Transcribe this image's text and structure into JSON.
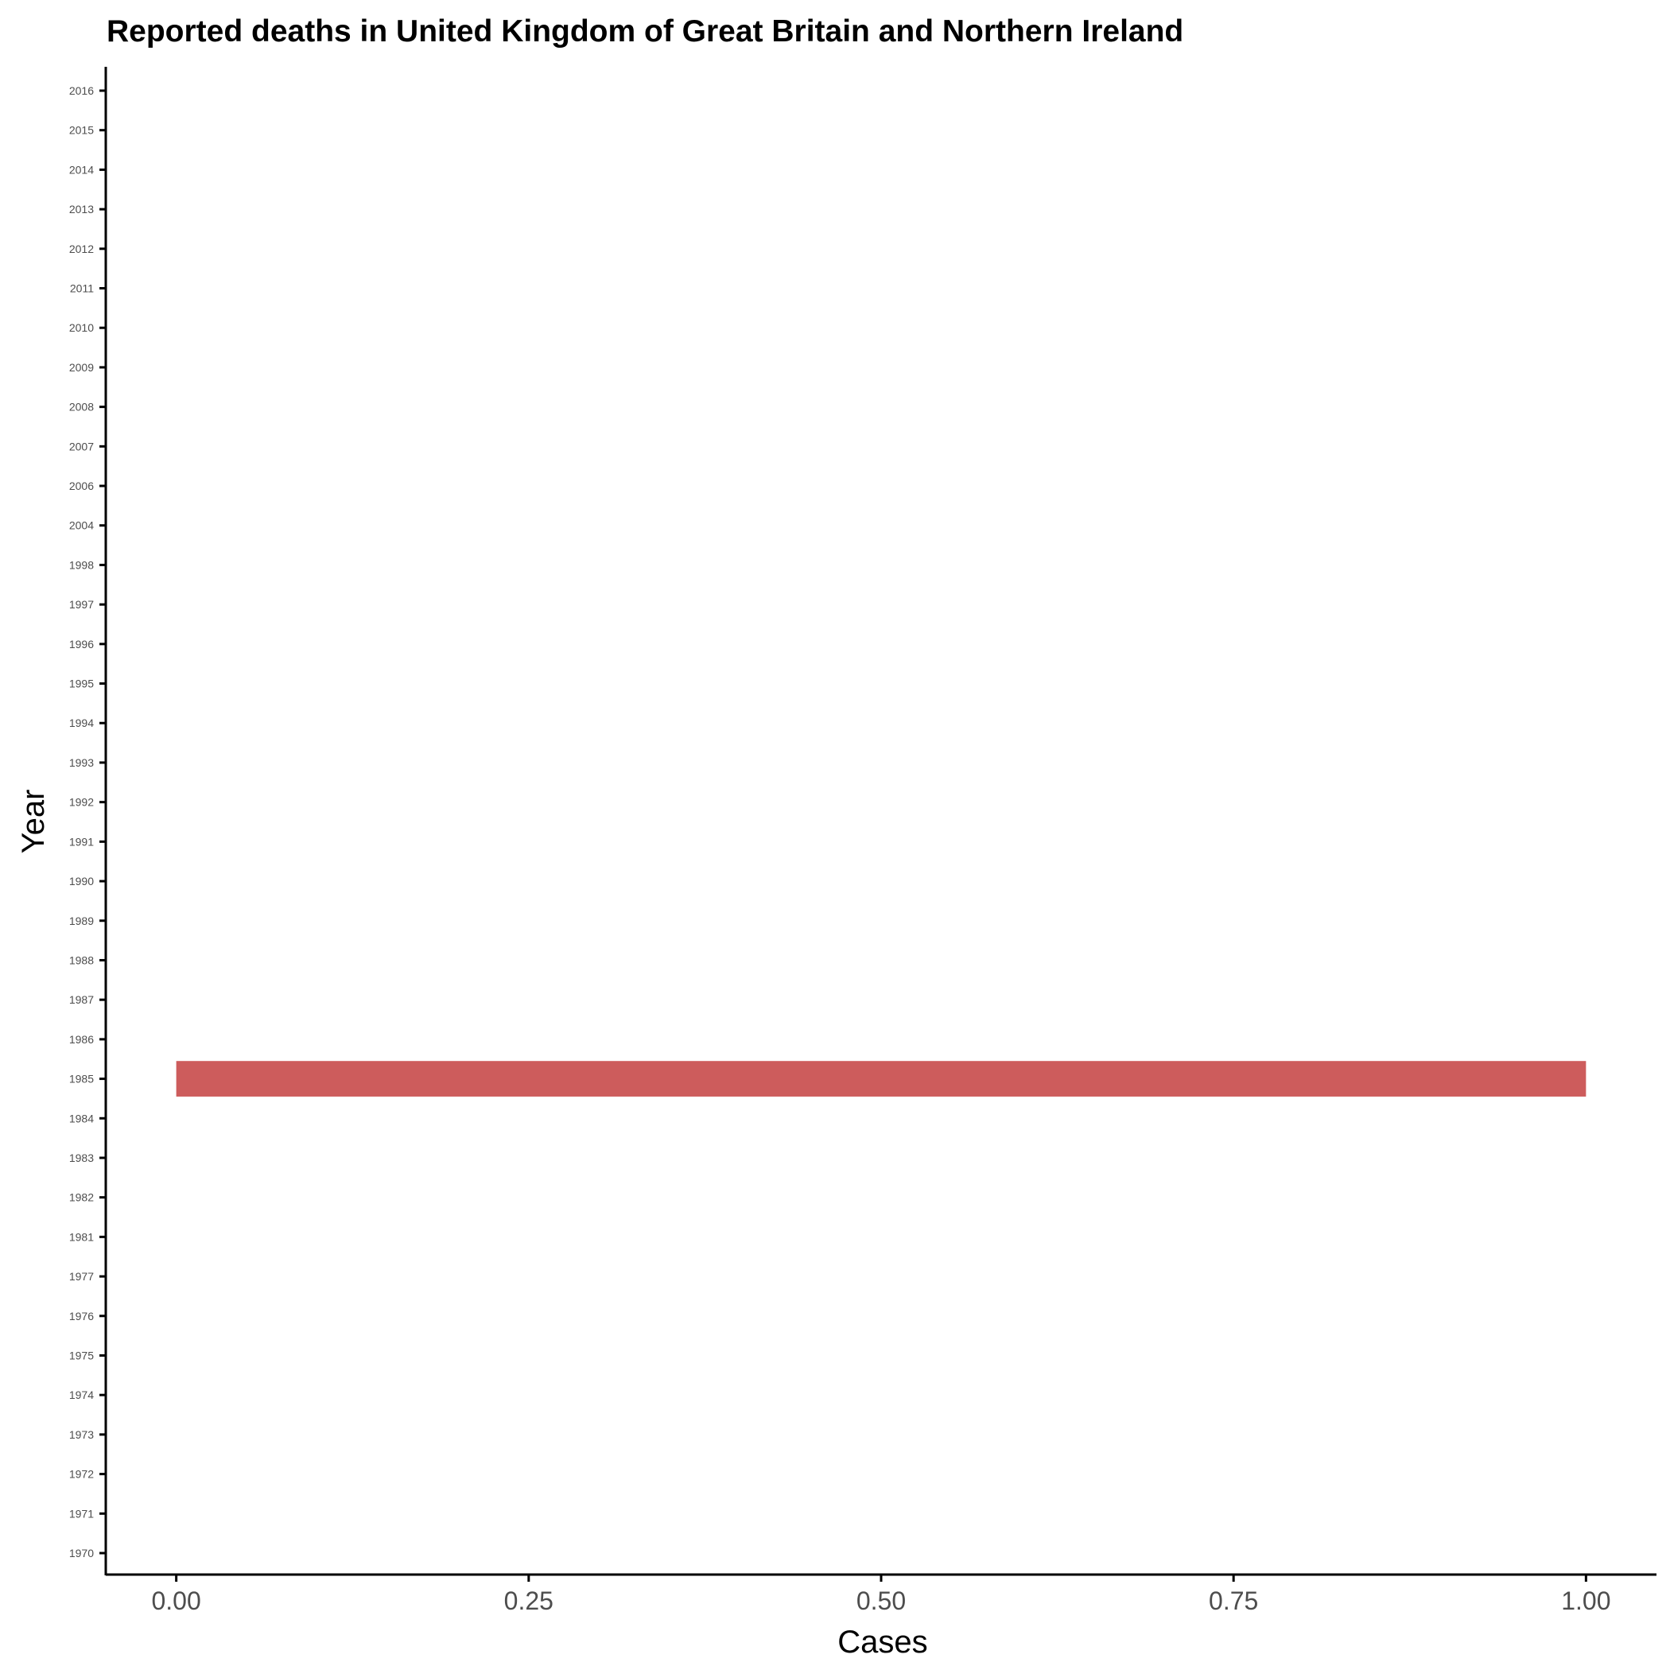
{
  "chart_data": {
    "type": "bar",
    "orientation": "horizontal",
    "title": "Reported deaths in United Kingdom of Great Britain and Northern Ireland",
    "xlabel": "Cases",
    "ylabel": "Year",
    "categories": [
      "1970",
      "1971",
      "1972",
      "1973",
      "1974",
      "1975",
      "1976",
      "1977",
      "1981",
      "1982",
      "1983",
      "1984",
      "1985",
      "1986",
      "1987",
      "1988",
      "1989",
      "1990",
      "1991",
      "1992",
      "1993",
      "1994",
      "1995",
      "1996",
      "1997",
      "1998",
      "2004",
      "2006",
      "2007",
      "2008",
      "2009",
      "2010",
      "2011",
      "2012",
      "2013",
      "2014",
      "2015",
      "2016"
    ],
    "values": [
      0,
      0,
      0,
      0,
      0,
      0,
      0,
      0,
      0,
      0,
      0,
      0,
      1,
      0,
      0,
      0,
      0,
      0,
      0,
      0,
      0,
      0,
      0,
      0,
      0,
      0,
      0,
      0,
      0,
      0,
      0,
      0,
      0,
      0,
      0,
      0,
      0,
      0
    ],
    "xlim": [
      -0.05,
      1.05
    ],
    "xticks": [
      "0.00",
      "0.25",
      "0.50",
      "0.75",
      "1.00"
    ],
    "bar_color": "#cd5c5c",
    "grid": false,
    "legend": "none"
  }
}
